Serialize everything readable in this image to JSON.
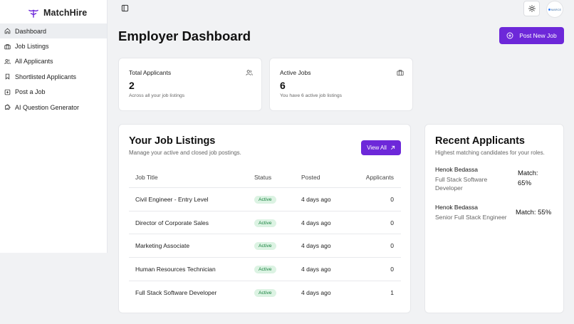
{
  "brand": {
    "name": "MatchHire"
  },
  "sidebar": {
    "items": [
      {
        "label": "Dashboard",
        "icon": "home-icon",
        "active": true
      },
      {
        "label": "Job Listings",
        "icon": "briefcase-icon",
        "active": false
      },
      {
        "label": "All Applicants",
        "icon": "users-icon",
        "active": false
      },
      {
        "label": "Shortlisted Applicants",
        "icon": "bookmark-icon",
        "active": false
      },
      {
        "label": "Post a Job",
        "icon": "plus-square-icon",
        "active": false
      },
      {
        "label": "AI Question Generator",
        "icon": "puzzle-icon",
        "active": false
      }
    ]
  },
  "topbar": {
    "avatar_text": "MARCE"
  },
  "header": {
    "title": "Employer Dashboard",
    "post_button": "Post New Job"
  },
  "stats": [
    {
      "label": "Total Applicants",
      "value": "2",
      "sub": "Across all your job listings",
      "icon": "users-icon"
    },
    {
      "label": "Active Jobs",
      "value": "6",
      "sub": "You have 6 active job listings",
      "icon": "briefcase-icon"
    }
  ],
  "job_listings": {
    "title": "Your Job Listings",
    "subtitle": "Manage your active and closed job postings.",
    "view_all": "View All",
    "columns": [
      "Job Title",
      "Status",
      "Posted",
      "Applicants"
    ],
    "rows": [
      {
        "title": "Civil Engineer - Entry Level",
        "status": "Active",
        "posted": "4 days ago",
        "applicants": "0"
      },
      {
        "title": "Director of Corporate Sales",
        "status": "Active",
        "posted": "4 days ago",
        "applicants": "0"
      },
      {
        "title": "Marketing Associate",
        "status": "Active",
        "posted": "4 days ago",
        "applicants": "0"
      },
      {
        "title": "Human Resources Technician",
        "status": "Active",
        "posted": "4 days ago",
        "applicants": "0"
      },
      {
        "title": "Full Stack Software Developer",
        "status": "Active",
        "posted": "4 days ago",
        "applicants": "1"
      }
    ]
  },
  "recent_applicants": {
    "title": "Recent Applicants",
    "subtitle": "Highest matching candidates for your roles.",
    "items": [
      {
        "name": "Henok Bedassa",
        "role": "Full Stack Software Developer",
        "match_label": "Match:",
        "match_value": "65%"
      },
      {
        "name": "Henok Bedassa",
        "role": "Senior Full Stack Engineer",
        "match": "Match: 55%"
      }
    ]
  },
  "colors": {
    "accent": "#6d28d9",
    "badge_bg": "#dcf3e3",
    "badge_text": "#16803d"
  }
}
